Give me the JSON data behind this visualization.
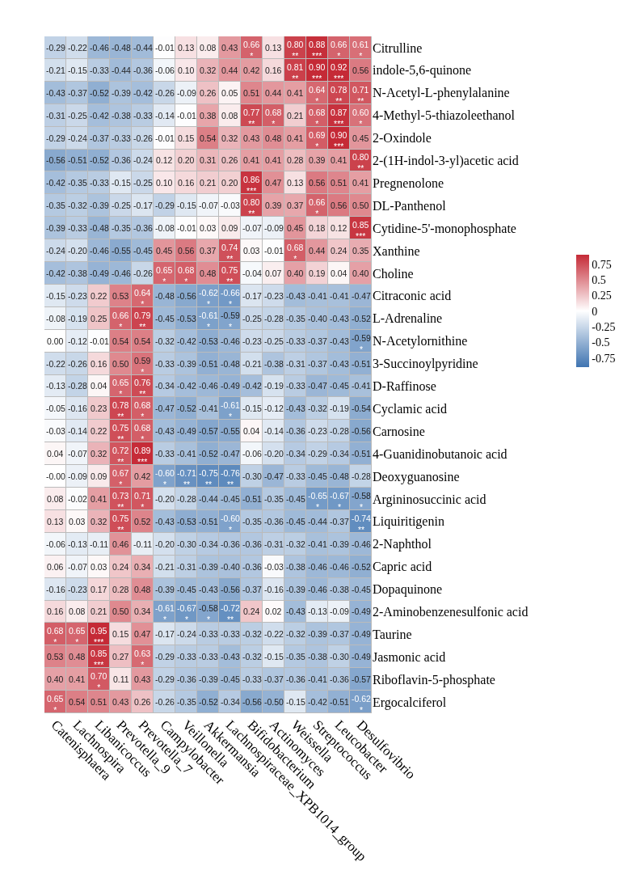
{
  "chart_data": {
    "type": "heatmap",
    "categories": [
      "Catenisphaera",
      "Lachnospira",
      "Libanicoccus",
      "Prevotella_9",
      "Prevotella_7",
      "Campylobacter",
      "Veillonella",
      "Akkermansia",
      "Lachnospiraceae_XPB1014_group",
      "Bifidobacterium",
      "Actinomyces",
      "Weissella",
      "Streptococcus",
      "Leucobacter",
      "Desulfovibrio"
    ],
    "y_categories": [
      "Citrulline",
      "indole-5,6-quinone",
      "N-Acetyl-L-phenylalanine",
      "4-Methyl-5-thiazoleethanol",
      "2-Oxindole",
      "2-(1H-indol-3-yl)acetic acid",
      "Pregnenolone",
      "DL-Panthenol",
      "Cytidine-5'-monophosphate",
      "Xanthine",
      "Choline",
      "Citraconic acid",
      "L-Adrenaline",
      "N-Acetylornithine",
      "3-Succinoylpyridine",
      "D-Raffinose",
      "Cyclamic acid",
      "Carnosine",
      "4-Guanidinobutanoic acid",
      "Deoxyguanosine",
      "Argininosuccinic acid",
      "Liquiritigenin",
      "2-Naphthol",
      "Capric acid",
      "Dopaquinone",
      "2-Aminobenzenesulfonic acid",
      "Taurine",
      "Jasmonic acid",
      "Riboflavin-5-phosphate",
      "Ergocalciferol"
    ],
    "cells": [
      [
        -0.29,
        -0.22,
        -0.46,
        -0.48,
        -0.44,
        -0.01,
        0.13,
        0.08,
        0.43,
        0.66,
        0.13,
        0.8,
        0.88,
        0.66,
        0.61
      ],
      [
        -0.21,
        -0.15,
        -0.33,
        -0.44,
        -0.36,
        -0.06,
        0.1,
        0.32,
        0.44,
        0.42,
        0.16,
        0.81,
        0.9,
        0.92,
        0.56
      ],
      [
        -0.43,
        -0.37,
        -0.52,
        -0.39,
        -0.42,
        -0.26,
        -0.09,
        0.26,
        0.05,
        0.51,
        0.44,
        0.41,
        0.64,
        0.78,
        0.71
      ],
      [
        -0.31,
        -0.25,
        -0.42,
        -0.38,
        -0.33,
        -0.14,
        -0.01,
        0.38,
        0.08,
        0.77,
        0.68,
        0.21,
        0.68,
        0.87,
        0.6
      ],
      [
        -0.29,
        -0.24,
        -0.37,
        -0.33,
        -0.26,
        -0.01,
        0.15,
        0.54,
        0.32,
        0.43,
        0.48,
        0.41,
        0.69,
        0.9,
        0.45
      ],
      [
        -0.56,
        -0.51,
        -0.52,
        -0.36,
        -0.24,
        0.12,
        0.2,
        0.31,
        0.26,
        0.41,
        0.41,
        0.28,
        0.39,
        0.41,
        0.8
      ],
      [
        -0.42,
        -0.35,
        -0.33,
        -0.15,
        -0.25,
        0.1,
        0.16,
        0.21,
        0.2,
        0.86,
        0.47,
        0.13,
        0.56,
        0.51,
        0.41
      ],
      [
        -0.35,
        -0.32,
        -0.39,
        -0.25,
        -0.17,
        -0.29,
        -0.15,
        -0.07,
        -0.03,
        0.8,
        0.39,
        0.37,
        0.66,
        0.56,
        0.5
      ],
      [
        -0.39,
        -0.33,
        -0.48,
        -0.35,
        -0.36,
        -0.08,
        -0.01,
        0.03,
        0.09,
        -0.07,
        -0.09,
        0.45,
        0.18,
        0.12,
        0.85
      ],
      [
        -0.24,
        -0.2,
        -0.46,
        -0.55,
        -0.45,
        0.45,
        0.56,
        0.37,
        0.74,
        0.03,
        -0.01,
        0.68,
        0.44,
        0.24,
        0.35
      ],
      [
        -0.42,
        -0.38,
        -0.49,
        -0.46,
        -0.26,
        0.65,
        0.68,
        0.48,
        0.75,
        -0.04,
        0.07,
        0.4,
        0.19,
        0.04,
        0.4
      ],
      [
        -0.15,
        -0.23,
        0.22,
        0.53,
        0.64,
        -0.48,
        -0.56,
        -0.62,
        -0.66,
        -0.17,
        -0.23,
        -0.43,
        -0.41,
        -0.41,
        -0.47
      ],
      [
        -0.08,
        -0.19,
        0.25,
        0.66,
        0.79,
        -0.45,
        -0.53,
        -0.61,
        -0.59,
        -0.25,
        -0.28,
        -0.35,
        -0.4,
        -0.43,
        -0.52
      ],
      [
        0.0,
        -0.12,
        -0.01,
        0.54,
        0.54,
        -0.32,
        -0.42,
        -0.53,
        -0.46,
        -0.23,
        -0.25,
        -0.33,
        -0.37,
        -0.43,
        -0.59
      ],
      [
        -0.22,
        -0.26,
        0.16,
        0.5,
        0.59,
        -0.33,
        -0.39,
        -0.51,
        -0.48,
        -0.21,
        -0.38,
        -0.31,
        -0.37,
        -0.43,
        -0.51
      ],
      [
        -0.13,
        -0.28,
        0.04,
        0.65,
        0.76,
        -0.34,
        -0.42,
        -0.46,
        -0.49,
        -0.42,
        -0.19,
        -0.33,
        -0.47,
        -0.45,
        -0.41
      ],
      [
        -0.05,
        -0.16,
        0.23,
        0.78,
        0.68,
        -0.47,
        -0.52,
        -0.41,
        -0.61,
        -0.15,
        -0.12,
        -0.43,
        -0.32,
        -0.19,
        -0.54
      ],
      [
        -0.03,
        -0.14,
        0.22,
        0.75,
        0.68,
        -0.43,
        -0.49,
        -0.57,
        -0.55,
        0.04,
        -0.14,
        -0.36,
        -0.23,
        -0.28,
        -0.56
      ],
      [
        0.04,
        -0.07,
        0.32,
        0.72,
        0.89,
        -0.33,
        -0.41,
        -0.52,
        -0.47,
        -0.06,
        -0.2,
        -0.34,
        -0.29,
        -0.34,
        -0.51
      ],
      [
        -0.0,
        -0.09,
        0.09,
        0.67,
        0.42,
        -0.6,
        -0.71,
        -0.75,
        -0.76,
        -0.3,
        -0.47,
        -0.33,
        -0.45,
        -0.48,
        -0.28
      ],
      [
        0.08,
        -0.02,
        0.41,
        0.73,
        0.71,
        -0.2,
        -0.28,
        -0.44,
        -0.45,
        -0.51,
        -0.35,
        -0.45,
        -0.65,
        -0.67,
        -0.58
      ],
      [
        0.13,
        0.03,
        0.32,
        0.75,
        0.52,
        -0.43,
        -0.53,
        -0.51,
        -0.6,
        -0.35,
        -0.36,
        -0.45,
        -0.44,
        -0.37,
        -0.74
      ],
      [
        -0.06,
        -0.13,
        -0.11,
        0.46,
        -0.11,
        -0.2,
        -0.3,
        -0.34,
        -0.36,
        -0.36,
        -0.31,
        -0.32,
        -0.41,
        -0.39,
        -0.46
      ],
      [
        0.06,
        -0.07,
        0.03,
        0.24,
        0.34,
        -0.21,
        -0.31,
        -0.39,
        -0.4,
        -0.36,
        -0.03,
        -0.38,
        -0.46,
        -0.46,
        -0.52
      ],
      [
        -0.16,
        -0.23,
        0.17,
        0.28,
        0.48,
        -0.39,
        -0.45,
        -0.43,
        -0.56,
        -0.37,
        -0.16,
        -0.39,
        -0.46,
        -0.38,
        -0.45
      ],
      [
        0.16,
        0.08,
        0.21,
        0.5,
        0.34,
        -0.61,
        -0.67,
        -0.58,
        -0.72,
        0.24,
        0.02,
        -0.43,
        -0.13,
        -0.09,
        -0.49
      ],
      [
        0.68,
        0.65,
        0.95,
        0.15,
        0.47,
        -0.17,
        -0.24,
        -0.33,
        -0.33,
        -0.32,
        -0.22,
        -0.32,
        -0.39,
        -0.37,
        -0.49
      ],
      [
        0.53,
        0.48,
        0.85,
        0.27,
        0.63,
        -0.29,
        -0.33,
        -0.33,
        -0.43,
        -0.32,
        -0.15,
        -0.35,
        -0.38,
        -0.3,
        -0.49
      ],
      [
        0.4,
        0.41,
        0.7,
        0.11,
        0.43,
        -0.29,
        -0.36,
        -0.39,
        -0.45,
        -0.33,
        -0.37,
        -0.36,
        -0.41,
        -0.36,
        -0.57
      ],
      [
        0.65,
        0.54,
        0.51,
        0.43,
        0.26,
        -0.26,
        -0.35,
        -0.52,
        -0.34,
        -0.56,
        -0.5,
        -0.15,
        -0.42,
        -0.51,
        -0.62
      ]
    ],
    "cell_labels": [
      [
        "-0.29",
        "-0.22",
        "-0.46",
        "-0.48",
        "-0.44",
        "-0.01",
        "0.13",
        "0.08",
        "0.43",
        "0.66\n*",
        "0.13",
        "0.80\n**",
        "0.88\n***",
        "0.66\n*",
        "0.61\n*"
      ],
      [
        "-0.21",
        "-0.15",
        "-0.33",
        "-0.44",
        "-0.36",
        "-0.06",
        "0.10",
        "0.32",
        "0.44",
        "0.42",
        "0.16",
        "0.81\n**",
        "0.90\n***",
        "0.92\n***",
        "0.56"
      ],
      [
        "-0.43",
        "-0.37",
        "-0.52",
        "-0.39",
        "-0.42",
        "-0.26",
        "-0.09",
        "0.26",
        "0.05",
        "0.51",
        "0.44",
        "0.41",
        "0.64\n*",
        "0.78\n**",
        "0.71\n**"
      ],
      [
        "-0.31",
        "-0.25",
        "-0.42",
        "-0.38",
        "-0.33",
        "-0.14",
        "-0.01",
        "0.38",
        "0.08",
        "0.77\n**",
        "0.68\n*",
        "0.21",
        "0.68\n*",
        "0.87\n***",
        "0.60\n*"
      ],
      [
        "-0.29",
        "-0.24",
        "-0.37",
        "-0.33",
        "-0.26",
        "-0.01",
        "0.15",
        "0.54",
        "0.32",
        "0.43",
        "0.48",
        "0.41",
        "0.69\n*",
        "0.90\n***",
        "0.45"
      ],
      [
        "-0.56",
        "-0.51",
        "-0.52",
        "-0.36",
        "-0.24",
        "0.12",
        "0.20",
        "0.31",
        "0.26",
        "0.41",
        "0.41",
        "0.28",
        "0.39",
        "0.41",
        "0.80\n**"
      ],
      [
        "-0.42",
        "-0.35",
        "-0.33",
        "-0.15",
        "-0.25",
        "0.10",
        "0.16",
        "0.21",
        "0.20",
        "0.86\n***",
        "0.47",
        "0.13",
        "0.56",
        "0.51",
        "0.41"
      ],
      [
        "-0.35",
        "-0.32",
        "-0.39",
        "-0.25",
        "-0.17",
        "-0.29",
        "-0.15",
        "-0.07",
        "-0.03",
        "0.80\n**",
        "0.39",
        "0.37",
        "0.66\n*",
        "0.56",
        "0.50"
      ],
      [
        "-0.39",
        "-0.33",
        "-0.48",
        "-0.35",
        "-0.36",
        "-0.08",
        "-0.01",
        "0.03",
        "0.09",
        "-0.07",
        "-0.09",
        "0.45",
        "0.18",
        "0.12",
        "0.85\n***"
      ],
      [
        "-0.24",
        "-0.20",
        "-0.46",
        "-0.55",
        "-0.45",
        "0.45",
        "0.56",
        "0.37",
        "0.74\n**",
        "0.03",
        "-0.01",
        "0.68\n*",
        "0.44",
        "0.24",
        "0.35"
      ],
      [
        "-0.42",
        "-0.38",
        "-0.49",
        "-0.46",
        "-0.26",
        "0.65\n*",
        "0.68\n*",
        "0.48",
        "0.75\n**",
        "-0.04",
        "0.07",
        "0.40",
        "0.19",
        "0.04",
        "0.40"
      ],
      [
        "-0.15",
        "-0.23",
        "0.22",
        "0.53",
        "0.64\n*",
        "-0.48",
        "-0.56",
        "-0.62\n*",
        "-0.66\n*",
        "-0.17",
        "-0.23",
        "-0.43",
        "-0.41",
        "-0.41",
        "-0.47"
      ],
      [
        "-0.08",
        "-0.19",
        "0.25",
        "0.66\n*",
        "0.79\n**",
        "-0.45",
        "-0.53",
        "-0.61\n*",
        "-0.59\n*",
        "-0.25",
        "-0.28",
        "-0.35",
        "-0.40",
        "-0.43",
        "-0.52"
      ],
      [
        "0.00",
        "-0.12",
        "-0.01",
        "0.54",
        "0.54",
        "-0.32",
        "-0.42",
        "-0.53",
        "-0.46",
        "-0.23",
        "-0.25",
        "-0.33",
        "-0.37",
        "-0.43",
        "-0.59\n*"
      ],
      [
        "-0.22",
        "-0.26",
        "0.16",
        "0.50",
        "0.59\n*",
        "-0.33",
        "-0.39",
        "-0.51",
        "-0.48",
        "-0.21",
        "-0.38",
        "-0.31",
        "-0.37",
        "-0.43",
        "-0.51"
      ],
      [
        "-0.13",
        "-0.28",
        "0.04",
        "0.65\n*",
        "0.76\n**",
        "-0.34",
        "-0.42",
        "-0.46",
        "-0.49",
        "-0.42",
        "-0.19",
        "-0.33",
        "-0.47",
        "-0.45",
        "-0.41"
      ],
      [
        "-0.05",
        "-0.16",
        "0.23",
        "0.78\n**",
        "0.68\n*",
        "-0.47",
        "-0.52",
        "-0.41",
        "-0.61\n*",
        "-0.15",
        "-0.12",
        "-0.43",
        "-0.32",
        "-0.19",
        "-0.54"
      ],
      [
        "-0.03",
        "-0.14",
        "0.22",
        "0.75\n**",
        "0.68\n*",
        "-0.43",
        "-0.49",
        "-0.57",
        "-0.55",
        "0.04",
        "-0.14",
        "-0.36",
        "-0.23",
        "-0.28",
        "-0.56"
      ],
      [
        "0.04",
        "-0.07",
        "0.32",
        "0.72\n**",
        "0.89\n***",
        "-0.33",
        "-0.41",
        "-0.52",
        "-0.47",
        "-0.06",
        "-0.20",
        "-0.34",
        "-0.29",
        "-0.34",
        "-0.51"
      ],
      [
        "-0.00",
        "-0.09",
        "0.09",
        "0.67\n*",
        "0.42",
        "-0.60\n*",
        "-0.71\n**",
        "-0.75\n**",
        "-0.76\n**",
        "-0.30",
        "-0.47",
        "-0.33",
        "-0.45",
        "-0.48",
        "-0.28"
      ],
      [
        "0.08",
        "-0.02",
        "0.41",
        "0.73\n**",
        "0.71\n*",
        "-0.20",
        "-0.28",
        "-0.44",
        "-0.45",
        "-0.51",
        "-0.35",
        "-0.45",
        "-0.65\n*",
        "-0.67\n*",
        "-0.58\n*"
      ],
      [
        "0.13",
        "0.03",
        "0.32",
        "0.75\n**",
        "0.52",
        "-0.43",
        "-0.53",
        "-0.51",
        "-0.60\n*",
        "-0.35",
        "-0.36",
        "-0.45",
        "-0.44",
        "-0.37",
        "-0.74\n**"
      ],
      [
        "-0.06",
        "-0.13",
        "-0.11",
        "0.46",
        "-0.11",
        "-0.20",
        "-0.30",
        "-0.34",
        "-0.36",
        "-0.36",
        "-0.31",
        "-0.32",
        "-0.41",
        "-0.39",
        "-0.46"
      ],
      [
        "0.06",
        "-0.07",
        "0.03",
        "0.24",
        "0.34",
        "-0.21",
        "-0.31",
        "-0.39",
        "-0.40",
        "-0.36",
        "-0.03",
        "-0.38",
        "-0.46",
        "-0.46",
        "-0.52"
      ],
      [
        "-0.16",
        "-0.23",
        "0.17",
        "0.28",
        "0.48",
        "-0.39",
        "-0.45",
        "-0.43",
        "-0.56",
        "-0.37",
        "-0.16",
        "-0.39",
        "-0.46",
        "-0.38",
        "-0.45"
      ],
      [
        "0.16",
        "0.08",
        "0.21",
        "0.50",
        "0.34",
        "-0.61\n*",
        "-0.67\n*",
        "-0.58\n*",
        "-0.72\n**",
        "0.24",
        "0.02",
        "-0.43",
        "-0.13",
        "-0.09",
        "-0.49"
      ],
      [
        "0.68\n*",
        "0.65\n*",
        "0.95\n***",
        "0.15",
        "0.47",
        "-0.17",
        "-0.24",
        "-0.33",
        "-0.33",
        "-0.32",
        "-0.22",
        "-0.32",
        "-0.39",
        "-0.37",
        "-0.49"
      ],
      [
        "0.53",
        "0.48",
        "0.85\n***",
        "0.27",
        "0.63\n*",
        "-0.29",
        "-0.33",
        "-0.33",
        "-0.43",
        "-0.32",
        "-0.15",
        "-0.35",
        "-0.38",
        "-0.30",
        "-0.49"
      ],
      [
        "0.40",
        "0.41",
        "0.70\n*",
        "0.11",
        "0.43",
        "-0.29",
        "-0.36",
        "-0.39",
        "-0.45",
        "-0.33",
        "-0.37",
        "-0.36",
        "-0.41",
        "-0.36",
        "-0.57"
      ],
      [
        "0.65\n*",
        "0.54",
        "0.51",
        "0.43",
        "0.26",
        "-0.26",
        "-0.35",
        "-0.52",
        "-0.34",
        "-0.56",
        "-0.50",
        "-0.15",
        "-0.42",
        "-0.51",
        "-0.62\n*"
      ]
    ],
    "clim": [
      -0.9,
      0.9
    ],
    "cticks": [
      0.75,
      0.5,
      0.25,
      0,
      -0.25,
      -0.5,
      -0.75
    ]
  }
}
